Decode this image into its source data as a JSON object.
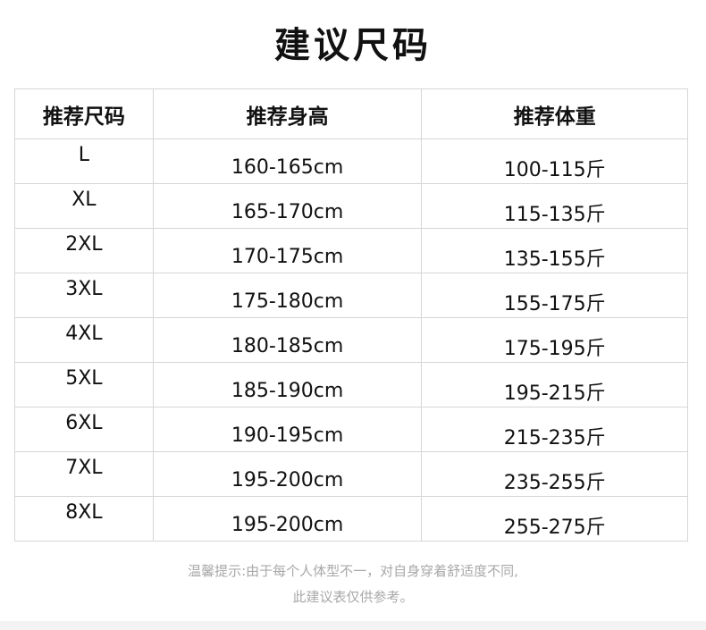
{
  "title": "建议尺码",
  "table": {
    "headers": [
      "推荐尺码",
      "推荐身高",
      "推荐体重"
    ],
    "rows": [
      {
        "size": "L",
        "height": "160-165cm",
        "weight": "100-115斤"
      },
      {
        "size": "XL",
        "height": "165-170cm",
        "weight": "115-135斤"
      },
      {
        "size": "2XL",
        "height": "170-175cm",
        "weight": "135-155斤"
      },
      {
        "size": "3XL",
        "height": "175-180cm",
        "weight": "155-175斤"
      },
      {
        "size": "4XL",
        "height": "180-185cm",
        "weight": "175-195斤"
      },
      {
        "size": "5XL",
        "height": "185-190cm",
        "weight": "195-215斤"
      },
      {
        "size": "6XL",
        "height": "190-195cm",
        "weight": "215-235斤"
      },
      {
        "size": "7XL",
        "height": "195-200cm",
        "weight": "235-255斤"
      },
      {
        "size": "8XL",
        "height": "195-200cm",
        "weight": "255-275斤"
      }
    ]
  },
  "note": {
    "line1": "温馨提示:由于每个人体型不一，对自身穿着舒适度不同,",
    "line2": "此建议表仅供参考。"
  }
}
